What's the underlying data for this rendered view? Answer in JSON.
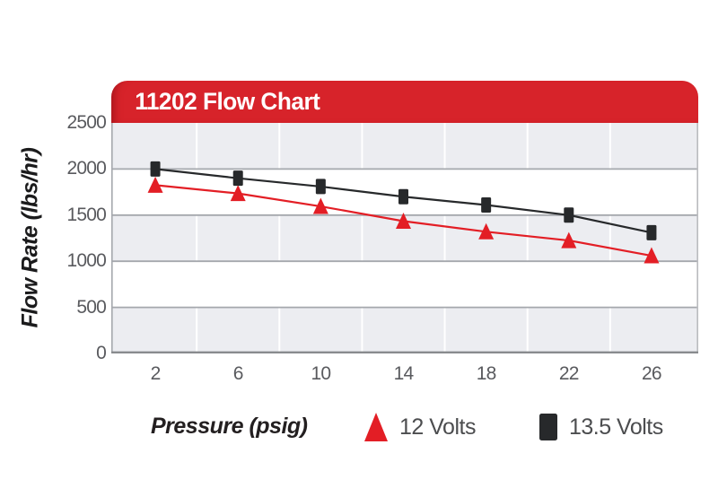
{
  "figure": {
    "kind": "product flow chart graphic"
  },
  "colors": {
    "header_red": "#d7232a",
    "series_red": "#e31e25",
    "series_black": "#27292b",
    "band_gray": "#ecedf1",
    "gridline_gray": "#a5a8ad",
    "axis_line_gray": "#898b8e",
    "tick_text_gray": "#595a5e",
    "background": "#ffffff"
  },
  "chart_data": {
    "type": "line",
    "title": "11202 Flow Chart",
    "xlabel": "Pressure (psig)",
    "ylabel": "Flow Rate (lbs/hr)",
    "x": [
      2,
      6,
      10,
      14,
      18,
      22,
      26
    ],
    "xticks": [
      2,
      6,
      10,
      14,
      18,
      22,
      26
    ],
    "yticks": [
      0,
      500,
      1000,
      1500,
      2000,
      2500
    ],
    "x_gridlines": [
      4,
      8,
      12,
      16,
      20,
      24
    ],
    "xlim": [
      -0.13,
      28.26
    ],
    "ylim": [
      0,
      2500
    ],
    "grid": "horizontal gridlines with alternating gray/white bands, white vertical gridlines between ticks",
    "legend_position": "bottom",
    "series": [
      {
        "name": "12 Volts",
        "marker": "triangle",
        "color": "#e31e25",
        "values": [
          1825,
          1735,
          1595,
          1435,
          1320,
          1225,
          1060
        ]
      },
      {
        "name": "13.5 Volts",
        "marker": "square",
        "color": "#27292b",
        "values": [
          2000,
          1900,
          1810,
          1700,
          1610,
          1500,
          1310
        ]
      }
    ]
  }
}
